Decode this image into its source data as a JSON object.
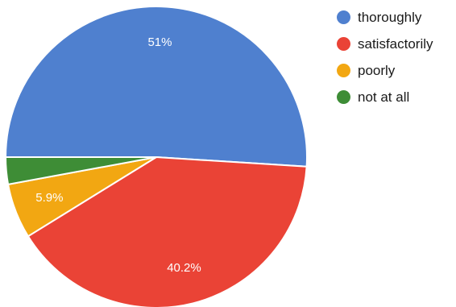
{
  "chart_data": {
    "type": "pie",
    "title": "",
    "slices": [
      {
        "label": "thoroughly",
        "value": 51.0,
        "display_label": "51%",
        "color": "#4f80cf"
      },
      {
        "label": "satisfactorily",
        "value": 40.2,
        "display_label": "40.2%",
        "color": "#ea4336"
      },
      {
        "label": "poorly",
        "value": 5.9,
        "display_label": "5.9%",
        "color": "#f2a712"
      },
      {
        "label": "not at all",
        "value": 2.9,
        "display_label": "",
        "color": "#3e8d36"
      }
    ],
    "legend_position": "top-right"
  }
}
